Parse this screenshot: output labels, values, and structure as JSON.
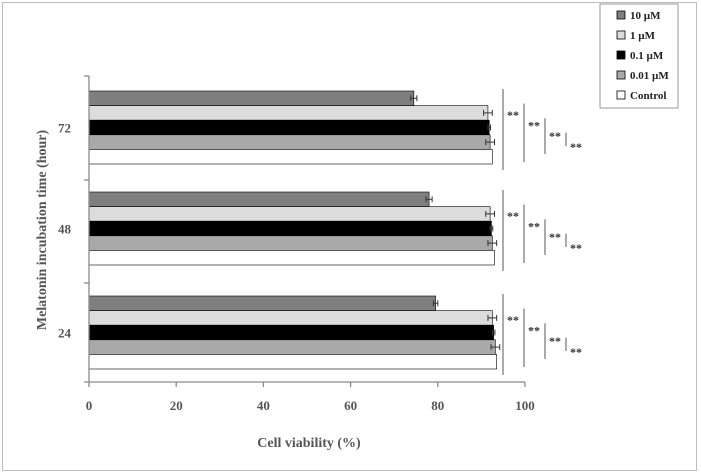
{
  "chart_data": {
    "type": "bar",
    "orientation": "horizontal",
    "title": "",
    "xlabel": "Cell viability (%)",
    "ylabel": "Melatonin incubation time (hour)",
    "xlim": [
      0,
      100
    ],
    "xticks": [
      "0",
      "20",
      "40",
      "60",
      "80",
      "100"
    ],
    "categories": [
      "72",
      "48",
      "24"
    ],
    "legend_position": "top-right",
    "grid": false,
    "significance_label": "**",
    "series": [
      {
        "name": "10 µM",
        "color": "#7f7f7f",
        "values": [
          74.5,
          78.0,
          79.5
        ],
        "errors": [
          0.7,
          0.7,
          0.5
        ]
      },
      {
        "name": "1 µM",
        "color": "#dcdcdc",
        "values": [
          91.5,
          92.0,
          92.5
        ],
        "errors": [
          1.0,
          1.0,
          1.0
        ]
      },
      {
        "name": "0.1 µM",
        "color": "#000000",
        "values": [
          91.8,
          92.3,
          92.8
        ],
        "errors": [
          0.3,
          0.3,
          0.3
        ]
      },
      {
        "name": "0.01 µM",
        "color": "#a9a9a9",
        "values": [
          92.0,
          92.5,
          93.2
        ],
        "errors": [
          1.0,
          1.0,
          1.0
        ]
      },
      {
        "name": "Control",
        "color": "#ffffff",
        "values": [
          92.5,
          93.0,
          93.5
        ],
        "errors": [
          0,
          0,
          0
        ]
      }
    ]
  }
}
